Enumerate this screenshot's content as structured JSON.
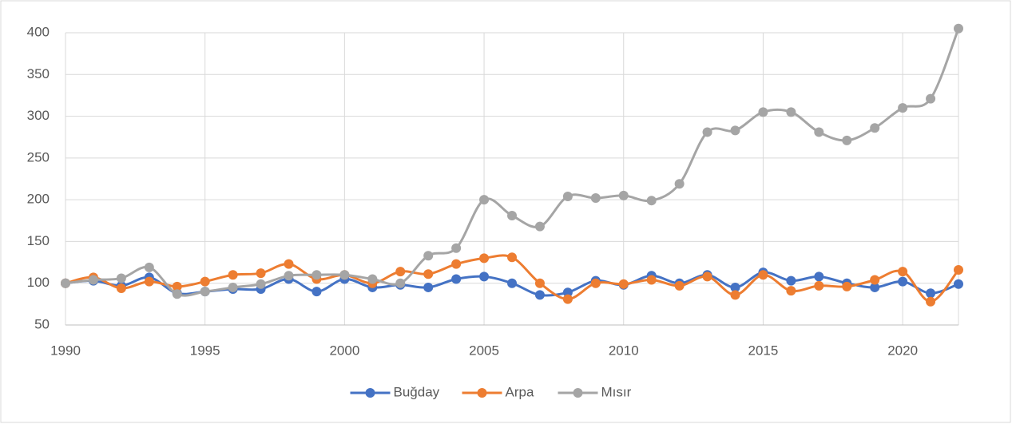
{
  "chart_data": {
    "type": "line",
    "x": [
      1990,
      1991,
      1992,
      1993,
      1994,
      1995,
      1996,
      1997,
      1998,
      1999,
      2000,
      2001,
      2002,
      2003,
      2004,
      2005,
      2006,
      2007,
      2008,
      2009,
      2010,
      2011,
      2012,
      2013,
      2014,
      2015,
      2016,
      2017,
      2018,
      2019,
      2020,
      2021,
      2022
    ],
    "series": [
      {
        "name": "Buğday",
        "color": "#4472c4",
        "values": [
          100,
          103,
          97,
          107,
          88,
          90,
          93,
          93,
          105,
          90,
          105,
          95,
          98,
          95,
          105,
          108,
          100,
          86,
          89,
          103,
          98,
          109,
          100,
          110,
          95,
          113,
          103,
          108,
          100,
          95,
          102,
          88,
          99
        ]
      },
      {
        "name": "Arpa",
        "color": "#ed7d31",
        "values": [
          100,
          107,
          94,
          102,
          96,
          102,
          110,
          112,
          123,
          105,
          110,
          100,
          114,
          111,
          123,
          130,
          131,
          100,
          81,
          100,
          99,
          104,
          97,
          108,
          86,
          110,
          91,
          97,
          96,
          104,
          114,
          78,
          116
        ]
      },
      {
        "name": "Mısır",
        "color": "#a5a5a5",
        "values": [
          100,
          104,
          106,
          119,
          87,
          90,
          95,
          99,
          109,
          110,
          110,
          105,
          100,
          133,
          142,
          200,
          181,
          168,
          204,
          202,
          205,
          199,
          219,
          281,
          283,
          305,
          305,
          281,
          271,
          286,
          310,
          321,
          405
        ]
      }
    ],
    "xlim": [
      1990,
      2022
    ],
    "xticks": [
      1990,
      1995,
      2000,
      2005,
      2010,
      2015,
      2020
    ],
    "ylim": [
      50,
      400
    ],
    "yticks": [
      50,
      100,
      150,
      200,
      250,
      300,
      350,
      400
    ],
    "grid": true,
    "smooth": true,
    "legend": "bottom"
  }
}
